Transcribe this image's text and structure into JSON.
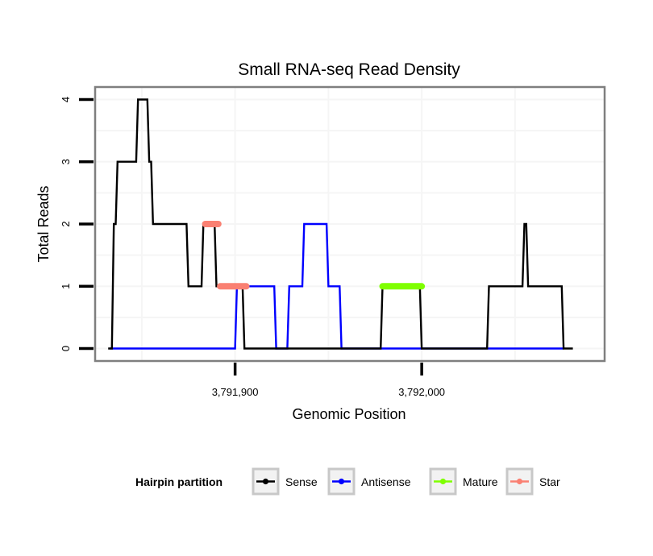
{
  "chart_data": {
    "type": "line",
    "title": "Small RNA-seq Read Density",
    "xlabel": "Genomic Position",
    "ylabel": "Total Reads",
    "xlim": [
      3791825,
      3792098
    ],
    "ylim": [
      -0.2,
      4.2
    ],
    "x_ticks": [
      {
        "value": 3791900,
        "label": "3,791,900"
      },
      {
        "value": 3792000,
        "label": "3,792,000"
      }
    ],
    "y_ticks": [
      {
        "value": 0,
        "label": "0"
      },
      {
        "value": 1,
        "label": "1"
      },
      {
        "value": 2,
        "label": "2"
      },
      {
        "value": 3,
        "label": "3"
      },
      {
        "value": 4,
        "label": "4"
      }
    ],
    "grid": true,
    "legend": {
      "title": "Hairpin partition",
      "placement": "bottom",
      "entries": [
        "Sense",
        "Antisense",
        "Mature",
        "Star"
      ]
    },
    "series": [
      {
        "name": "Sense",
        "color": "#000000",
        "points": [
          [
            3791832,
            0
          ],
          [
            3791834,
            0
          ],
          [
            3791835,
            2
          ],
          [
            3791836,
            2
          ],
          [
            3791837,
            3
          ],
          [
            3791847,
            3
          ],
          [
            3791848,
            4
          ],
          [
            3791853,
            4
          ],
          [
            3791854,
            3
          ],
          [
            3791855,
            3
          ],
          [
            3791856,
            2
          ],
          [
            3791874,
            2
          ],
          [
            3791875,
            1
          ],
          [
            3791882,
            1
          ],
          [
            3791883,
            2
          ],
          [
            3791889,
            2
          ],
          [
            3791890,
            1
          ],
          [
            3791904,
            1
          ],
          [
            3791905,
            0
          ],
          [
            3791978,
            0
          ],
          [
            3791979,
            1
          ],
          [
            3791999,
            1
          ],
          [
            3792000,
            0
          ],
          [
            3792035,
            0
          ],
          [
            3792036,
            1
          ],
          [
            3792054,
            1
          ],
          [
            3792055,
            2
          ],
          [
            3792056,
            2
          ],
          [
            3792057,
            1
          ],
          [
            3792075,
            1
          ],
          [
            3792076,
            0
          ],
          [
            3792081,
            0
          ]
        ]
      },
      {
        "name": "Antisense",
        "color": "#0000FF",
        "points": [
          [
            3791833,
            0
          ],
          [
            3791900,
            0
          ],
          [
            3791901,
            1
          ],
          [
            3791921,
            1
          ],
          [
            3791922,
            0
          ],
          [
            3791928,
            0
          ],
          [
            3791929,
            1
          ],
          [
            3791936,
            1
          ],
          [
            3791937,
            2
          ],
          [
            3791949,
            2
          ],
          [
            3791950,
            1
          ],
          [
            3791956,
            1
          ],
          [
            3791957,
            0
          ],
          [
            3792076,
            0
          ]
        ]
      },
      {
        "name": "Mature",
        "color": "#7FFF00",
        "points": [
          [
            3791979,
            1
          ],
          [
            3792000,
            1
          ]
        ]
      },
      {
        "name": "Star",
        "color": "#FA8072",
        "segments": [
          [
            [
              3791884,
              2
            ],
            [
              3791891,
              2
            ]
          ],
          [
            [
              3791892,
              1
            ],
            [
              3791906,
              1
            ]
          ]
        ]
      }
    ]
  }
}
